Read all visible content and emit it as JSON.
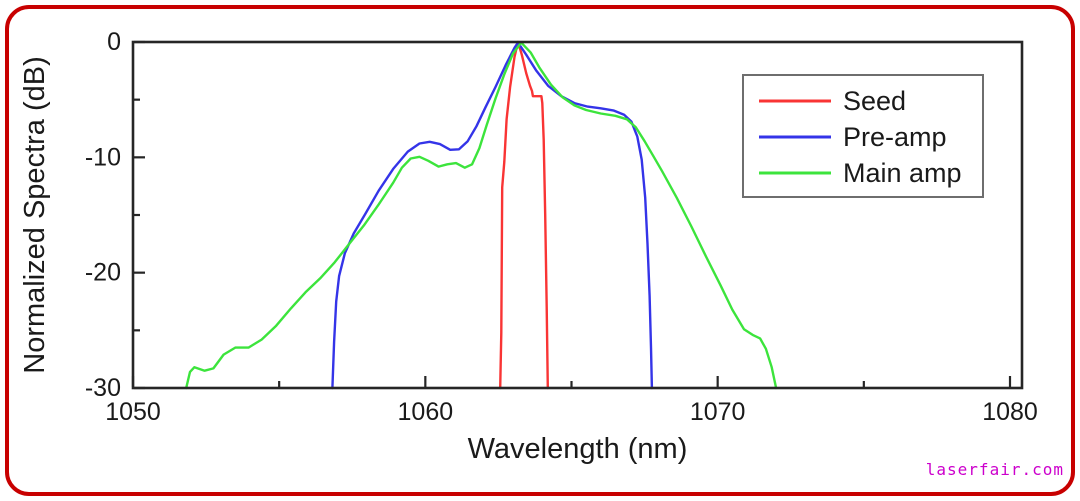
{
  "figure": {
    "border_color": "#c80000",
    "background": "#ffffff",
    "watermark": {
      "text": "laserfair.com",
      "color": "#cc00cc"
    }
  },
  "chart_data": {
    "type": "line",
    "title": "",
    "xlabel": "Wavelength (nm)",
    "ylabel": "Normalized Spectra (dB)",
    "xlim": [
      1050,
      1080
    ],
    "ylim": [
      -30,
      0
    ],
    "x_major_ticks": [
      1050,
      1060,
      1070,
      1080
    ],
    "x_minor_ticks": [
      1055,
      1065,
      1075
    ],
    "y_major_ticks": [
      0,
      -10,
      -20,
      -30
    ],
    "y_minor_ticks": [
      -5,
      -15,
      -25
    ],
    "grid": false,
    "frame": true,
    "axis_color": "#262626",
    "legend": {
      "position": "upper right",
      "border_color": "#6e6e6e",
      "entries": [
        "Seed",
        "Pre-amp",
        "Main amp"
      ]
    },
    "series": [
      {
        "name": "Seed",
        "color": "#f93434",
        "points": [
          [
            1062.56,
            -30
          ],
          [
            1062.6,
            -25.2
          ],
          [
            1062.63,
            -12.6
          ],
          [
            1062.7,
            -10.4
          ],
          [
            1062.78,
            -6.7
          ],
          [
            1062.9,
            -3.9
          ],
          [
            1063.05,
            -1.3
          ],
          [
            1063.17,
            0
          ],
          [
            1063.3,
            -1.1
          ],
          [
            1063.45,
            -2.7
          ],
          [
            1063.58,
            -3.8
          ],
          [
            1063.65,
            -4.25
          ],
          [
            1063.68,
            -4.7
          ],
          [
            1063.97,
            -4.7
          ],
          [
            1064.0,
            -5.3
          ],
          [
            1064.05,
            -8.5
          ],
          [
            1064.1,
            -15
          ],
          [
            1064.15,
            -23
          ],
          [
            1064.19,
            -30
          ]
        ]
      },
      {
        "name": "Pre-amp",
        "color": "#3434e8",
        "points": [
          [
            1056.82,
            -30
          ],
          [
            1056.88,
            -26
          ],
          [
            1056.95,
            -22.5
          ],
          [
            1057.05,
            -20.3
          ],
          [
            1057.25,
            -18.3
          ],
          [
            1057.55,
            -16.6
          ],
          [
            1057.95,
            -14.9
          ],
          [
            1058.4,
            -12.9
          ],
          [
            1058.9,
            -11.0
          ],
          [
            1059.4,
            -9.5
          ],
          [
            1059.8,
            -8.8
          ],
          [
            1060.15,
            -8.65
          ],
          [
            1060.5,
            -8.85
          ],
          [
            1060.85,
            -9.35
          ],
          [
            1061.15,
            -9.3
          ],
          [
            1061.45,
            -8.6
          ],
          [
            1061.75,
            -7.3
          ],
          [
            1062.05,
            -5.7
          ],
          [
            1062.4,
            -3.9
          ],
          [
            1062.75,
            -2.0
          ],
          [
            1063.05,
            -0.5
          ],
          [
            1063.17,
            -0.05
          ],
          [
            1063.45,
            -1.1
          ],
          [
            1063.8,
            -2.5
          ],
          [
            1064.2,
            -3.8
          ],
          [
            1064.65,
            -4.7
          ],
          [
            1065.1,
            -5.3
          ],
          [
            1065.55,
            -5.6
          ],
          [
            1066.0,
            -5.75
          ],
          [
            1066.45,
            -5.95
          ],
          [
            1066.8,
            -6.3
          ],
          [
            1067.05,
            -6.9
          ],
          [
            1067.25,
            -8.2
          ],
          [
            1067.4,
            -10.2
          ],
          [
            1067.52,
            -13.5
          ],
          [
            1067.6,
            -17.5
          ],
          [
            1067.67,
            -22
          ],
          [
            1067.72,
            -26.5
          ],
          [
            1067.75,
            -30
          ]
        ]
      },
      {
        "name": "Main amp",
        "color": "#3ce43c",
        "points": [
          [
            1051.82,
            -30
          ],
          [
            1051.95,
            -28.6
          ],
          [
            1052.1,
            -28.2
          ],
          [
            1052.45,
            -28.5
          ],
          [
            1052.75,
            -28.3
          ],
          [
            1053.1,
            -27.1
          ],
          [
            1053.5,
            -26.5
          ],
          [
            1053.95,
            -26.5
          ],
          [
            1054.4,
            -25.8
          ],
          [
            1054.9,
            -24.6
          ],
          [
            1055.4,
            -23.1
          ],
          [
            1055.9,
            -21.7
          ],
          [
            1056.4,
            -20.5
          ],
          [
            1056.9,
            -19.1
          ],
          [
            1057.4,
            -17.5
          ],
          [
            1057.9,
            -15.9
          ],
          [
            1058.4,
            -14.1
          ],
          [
            1058.9,
            -12.2
          ],
          [
            1059.2,
            -10.9
          ],
          [
            1059.5,
            -10.1
          ],
          [
            1059.8,
            -9.95
          ],
          [
            1060.1,
            -10.3
          ],
          [
            1060.45,
            -10.8
          ],
          [
            1060.75,
            -10.6
          ],
          [
            1061.05,
            -10.5
          ],
          [
            1061.35,
            -10.9
          ],
          [
            1061.6,
            -10.6
          ],
          [
            1061.85,
            -9.2
          ],
          [
            1062.1,
            -7.2
          ],
          [
            1062.4,
            -4.9
          ],
          [
            1062.7,
            -2.8
          ],
          [
            1063.0,
            -1.0
          ],
          [
            1063.28,
            -0.05
          ],
          [
            1063.6,
            -0.9
          ],
          [
            1063.9,
            -2.2
          ],
          [
            1064.3,
            -3.7
          ],
          [
            1064.7,
            -4.8
          ],
          [
            1065.1,
            -5.5
          ],
          [
            1065.5,
            -5.9
          ],
          [
            1066.0,
            -6.2
          ],
          [
            1066.5,
            -6.4
          ],
          [
            1066.9,
            -6.7
          ],
          [
            1067.2,
            -7.4
          ],
          [
            1067.5,
            -8.6
          ],
          [
            1067.8,
            -9.9
          ],
          [
            1068.1,
            -11.2
          ],
          [
            1068.6,
            -13.5
          ],
          [
            1069.1,
            -16.0
          ],
          [
            1069.6,
            -18.6
          ],
          [
            1070.1,
            -21.1
          ],
          [
            1070.5,
            -23.2
          ],
          [
            1070.9,
            -24.9
          ],
          [
            1071.2,
            -25.4
          ],
          [
            1071.45,
            -25.7
          ],
          [
            1071.65,
            -26.6
          ],
          [
            1071.85,
            -28.2
          ],
          [
            1072.0,
            -30
          ]
        ]
      }
    ]
  }
}
